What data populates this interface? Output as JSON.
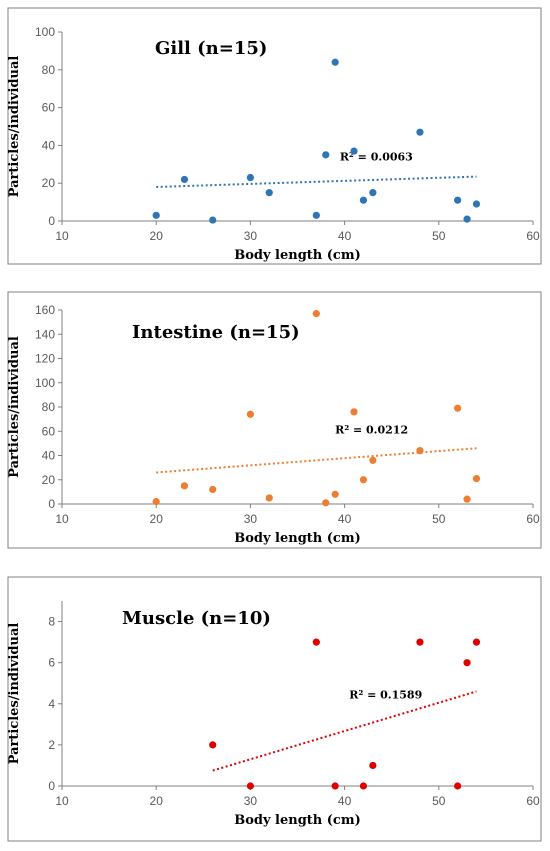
{
  "chart_data": [
    {
      "type": "scatter",
      "title": "Gill (n=15)",
      "xlabel": "Body length (cm)",
      "ylabel": "Particles/individual",
      "xlim": [
        10,
        60
      ],
      "ylim": [
        0,
        100
      ],
      "xticks": [
        10,
        20,
        30,
        40,
        50,
        60
      ],
      "yticks": [
        0,
        20,
        40,
        60,
        80,
        100
      ],
      "grid": false,
      "color": "#2E75B6",
      "points": [
        {
          "x": 20,
          "y": 3
        },
        {
          "x": 23,
          "y": 22
        },
        {
          "x": 26,
          "y": 0.5
        },
        {
          "x": 30,
          "y": 23
        },
        {
          "x": 32,
          "y": 15
        },
        {
          "x": 37,
          "y": 3
        },
        {
          "x": 38,
          "y": 35
        },
        {
          "x": 39,
          "y": 84
        },
        {
          "x": 41,
          "y": 37
        },
        {
          "x": 42,
          "y": 11
        },
        {
          "x": 43,
          "y": 15
        },
        {
          "x": 48,
          "y": 47
        },
        {
          "x": 52,
          "y": 11
        },
        {
          "x": 53,
          "y": 1
        },
        {
          "x": 54,
          "y": 9
        }
      ],
      "trendline": {
        "x1": 20,
        "y1": 18,
        "x2": 54,
        "y2": 23.5,
        "label": "R² = 0.0063",
        "label_x": 39.5,
        "label_y": 32
      }
    },
    {
      "type": "scatter",
      "title": "Intestine (n=15)",
      "xlabel": "Body length (cm)",
      "ylabel": "Particles/individual",
      "xlim": [
        10,
        60
      ],
      "ylim": [
        0,
        160
      ],
      "xticks": [
        10,
        20,
        30,
        40,
        50,
        60
      ],
      "yticks": [
        0,
        20,
        40,
        60,
        80,
        100,
        120,
        140,
        160
      ],
      "grid": false,
      "color": "#ED7D31",
      "points": [
        {
          "x": 20,
          "y": 2
        },
        {
          "x": 23,
          "y": 15
        },
        {
          "x": 26,
          "y": 12
        },
        {
          "x": 30,
          "y": 74
        },
        {
          "x": 32,
          "y": 5
        },
        {
          "x": 37,
          "y": 157
        },
        {
          "x": 38,
          "y": 1
        },
        {
          "x": 39,
          "y": 8
        },
        {
          "x": 41,
          "y": 76
        },
        {
          "x": 42,
          "y": 20
        },
        {
          "x": 43,
          "y": 36
        },
        {
          "x": 48,
          "y": 44
        },
        {
          "x": 52,
          "y": 79
        },
        {
          "x": 53,
          "y": 4
        },
        {
          "x": 54,
          "y": 21
        }
      ],
      "trendline": {
        "x1": 20,
        "y1": 26,
        "x2": 54,
        "y2": 46,
        "label": "R² = 0.0212",
        "label_x": 39,
        "label_y": 58
      }
    },
    {
      "type": "scatter",
      "title": "Muscle (n=10)",
      "xlabel": "Body length (cm)",
      "ylabel": "Particles/individual",
      "xlim": [
        10,
        60
      ],
      "ylim": [
        0,
        9
      ],
      "xticks": [
        10,
        20,
        30,
        40,
        50,
        60
      ],
      "yticks": [
        0,
        2,
        4,
        6,
        8
      ],
      "grid": false,
      "color": "#E00000",
      "points": [
        {
          "x": 26,
          "y": 2
        },
        {
          "x": 30,
          "y": 0
        },
        {
          "x": 37,
          "y": 7
        },
        {
          "x": 39,
          "y": 0
        },
        {
          "x": 42,
          "y": 0
        },
        {
          "x": 43,
          "y": 1
        },
        {
          "x": 48,
          "y": 7
        },
        {
          "x": 52,
          "y": 0
        },
        {
          "x": 53,
          "y": 6
        },
        {
          "x": 54,
          "y": 7
        }
      ],
      "trendline": {
        "x1": 26,
        "y1": 0.75,
        "x2": 54,
        "y2": 4.6,
        "label": "R² = 0.1589",
        "label_x": 40.5,
        "label_y": 4.25
      }
    }
  ]
}
